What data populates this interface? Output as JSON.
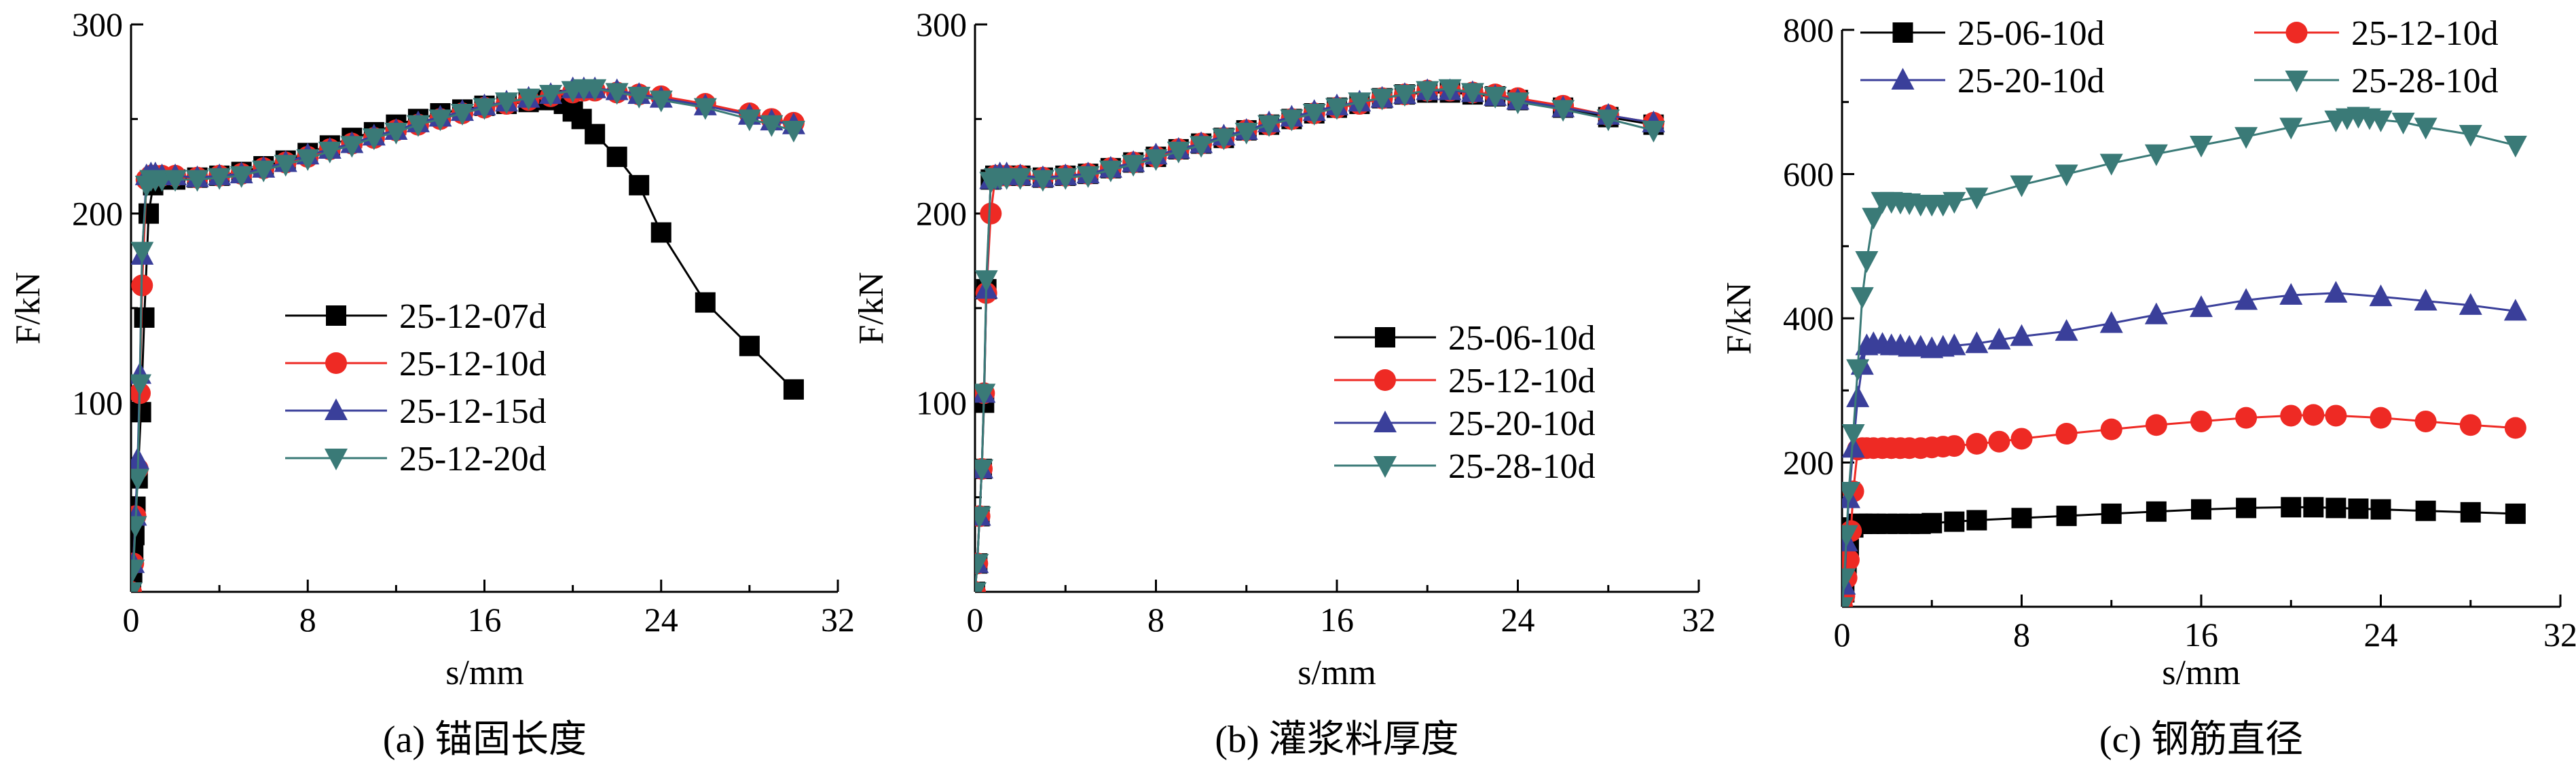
{
  "chart_data": [
    {
      "type": "line",
      "caption": "(a) 锚固长度",
      "ylabel": "F/kN",
      "xlabel": "s/mm",
      "xlim": [
        0,
        32
      ],
      "ylim": [
        0,
        300
      ],
      "xticks": [
        0,
        8,
        16,
        24,
        32
      ],
      "yticks": [
        100,
        200,
        300
      ],
      "legend_position": "center",
      "series": [
        {
          "name": "25-12-07d",
          "color": "#000000",
          "marker": "square",
          "x": [
            0,
            0.05,
            0.1,
            0.15,
            0.2,
            0.3,
            0.45,
            0.6,
            0.8,
            1.0,
            1.5,
            2,
            3,
            4,
            5,
            6,
            7,
            8,
            9,
            10,
            11,
            12,
            13,
            14,
            15,
            16,
            17,
            18,
            18.7,
            19.2,
            19.6,
            20,
            20.4,
            21,
            22,
            23,
            24,
            26,
            28,
            30
          ],
          "y": [
            0,
            10,
            20,
            30,
            45,
            60,
            95,
            145,
            200,
            215,
            218,
            218,
            219,
            220,
            222,
            225,
            228,
            232,
            236,
            240,
            243,
            247,
            250,
            253,
            255,
            257,
            258,
            259,
            260,
            260,
            258,
            254,
            250,
            242,
            230,
            215,
            190,
            153,
            130,
            107
          ]
        },
        {
          "name": "25-12-10d",
          "color": "#ee2a24",
          "marker": "circle",
          "x": [
            0,
            0.1,
            0.2,
            0.3,
            0.4,
            0.5,
            0.7,
            0.9,
            1.1,
            1.4,
            2,
            3,
            4,
            5,
            6,
            7,
            8,
            9,
            10,
            11,
            12,
            13,
            14,
            15,
            16,
            17,
            18,
            19,
            20,
            20.5,
            21,
            22,
            23,
            24,
            26,
            28,
            29,
            30
          ],
          "y": [
            0,
            15,
            40,
            65,
            105,
            162,
            218,
            220,
            220,
            220,
            220,
            219,
            220,
            221,
            224,
            227,
            230,
            234,
            237,
            240,
            244,
            247,
            250,
            253,
            256,
            258,
            260,
            262,
            264,
            265,
            265,
            264,
            263,
            262,
            258,
            253,
            250,
            248
          ]
        },
        {
          "name": "25-12-15d",
          "color": "#3a3f9a",
          "marker": "triangle-up",
          "x": [
            0,
            0.1,
            0.2,
            0.3,
            0.4,
            0.5,
            0.7,
            0.9,
            1.1,
            1.4,
            2,
            3,
            4,
            5,
            6,
            7,
            8,
            9,
            10,
            11,
            12,
            13,
            14,
            15,
            16,
            17,
            18,
            19,
            20,
            20.5,
            21,
            22,
            23,
            24,
            26,
            28,
            29,
            30
          ],
          "y": [
            0,
            15,
            40,
            70,
            115,
            178,
            220,
            221,
            221,
            220,
            220,
            219,
            220,
            221,
            224,
            227,
            231,
            234,
            237,
            241,
            244,
            248,
            251,
            254,
            257,
            259,
            261,
            263,
            266,
            266,
            266,
            265,
            263,
            261,
            257,
            252,
            249,
            247
          ]
        },
        {
          "name": "25-12-20d",
          "color": "#3a7a77",
          "marker": "triangle-down",
          "x": [
            0,
            0.1,
            0.2,
            0.3,
            0.4,
            0.5,
            0.7,
            0.9,
            1.1,
            1.4,
            2,
            3,
            4,
            5,
            6,
            7,
            8,
            9,
            10,
            11,
            12,
            13,
            14,
            15,
            16,
            17,
            18,
            19,
            20,
            20.5,
            21,
            22,
            23,
            24,
            26,
            28,
            29,
            30
          ],
          "y": [
            0,
            12,
            35,
            60,
            110,
            180,
            215,
            218,
            218,
            218,
            218,
            218,
            219,
            220,
            223,
            226,
            229,
            233,
            236,
            240,
            243,
            247,
            250,
            253,
            256,
            259,
            261,
            263,
            265,
            266,
            266,
            264,
            262,
            260,
            256,
            250,
            247,
            244
          ]
        }
      ]
    },
    {
      "type": "line",
      "caption": "(b) 灌浆料厚度",
      "ylabel": "F/kN",
      "xlabel": "s/mm",
      "xlim": [
        0,
        32
      ],
      "ylim": [
        0,
        300
      ],
      "xticks": [
        0,
        8,
        16,
        24,
        32
      ],
      "yticks": [
        100,
        200,
        300
      ],
      "legend_position": "center-right",
      "series": [
        {
          "name": "25-06-10d",
          "color": "#000000",
          "marker": "square",
          "x": [
            0,
            0.1,
            0.2,
            0.3,
            0.4,
            0.5,
            0.7,
            0.9,
            1.1,
            1.4,
            2,
            3,
            4,
            5,
            6,
            7,
            8,
            9,
            10,
            11,
            12,
            13,
            14,
            15,
            16,
            17,
            18,
            19,
            20,
            21,
            22,
            23,
            24,
            26,
            28,
            30
          ],
          "y": [
            0,
            15,
            40,
            65,
            100,
            160,
            218,
            220,
            220,
            220,
            220,
            219,
            220,
            221,
            224,
            227,
            230,
            234,
            237,
            240,
            244,
            247,
            250,
            253,
            256,
            258,
            261,
            263,
            264,
            264,
            263,
            262,
            260,
            256,
            251,
            247
          ]
        },
        {
          "name": "25-12-10d",
          "color": "#ee2a24",
          "marker": "circle",
          "x": [
            0,
            0.1,
            0.2,
            0.3,
            0.4,
            0.5,
            0.7,
            0.9,
            1.1,
            1.4,
            2,
            3,
            4,
            5,
            6,
            7,
            8,
            9,
            10,
            11,
            12,
            13,
            14,
            15,
            16,
            17,
            18,
            19,
            20,
            21,
            22,
            23,
            24,
            26,
            28,
            30
          ],
          "y": [
            0,
            15,
            40,
            65,
            105,
            158,
            200,
            220,
            220,
            220,
            220,
            219,
            220,
            221,
            224,
            227,
            230,
            234,
            237,
            240,
            244,
            247,
            250,
            253,
            256,
            258,
            261,
            263,
            265,
            265,
            264,
            263,
            261,
            257,
            252,
            248
          ]
        },
        {
          "name": "25-20-10d",
          "color": "#3a3f9a",
          "marker": "triangle-up",
          "x": [
            0,
            0.1,
            0.2,
            0.3,
            0.4,
            0.5,
            0.7,
            0.9,
            1.1,
            1.4,
            2,
            3,
            4,
            5,
            6,
            7,
            8,
            9,
            10,
            11,
            12,
            13,
            14,
            15,
            16,
            17,
            18,
            19,
            20,
            21,
            22,
            23,
            24,
            26,
            28,
            30
          ],
          "y": [
            0,
            15,
            40,
            65,
            105,
            160,
            218,
            220,
            221,
            221,
            220,
            219,
            220,
            221,
            224,
            227,
            231,
            234,
            237,
            241,
            244,
            248,
            251,
            254,
            257,
            259,
            261,
            263,
            265,
            265,
            264,
            262,
            260,
            256,
            252,
            248
          ]
        },
        {
          "name": "25-28-10d",
          "color": "#3a7a77",
          "marker": "triangle-down",
          "x": [
            0,
            0.1,
            0.2,
            0.3,
            0.4,
            0.5,
            0.7,
            0.9,
            1.1,
            1.4,
            2,
            3,
            4,
            5,
            6,
            7,
            8,
            9,
            10,
            11,
            12,
            13,
            14,
            15,
            16,
            17,
            18,
            19,
            20,
            21,
            22,
            23,
            24,
            26,
            28,
            30
          ],
          "y": [
            0,
            15,
            40,
            65,
            105,
            165,
            217,
            219,
            219,
            219,
            219,
            218,
            219,
            220,
            223,
            226,
            229,
            233,
            236,
            240,
            243,
            247,
            250,
            253,
            256,
            259,
            261,
            263,
            265,
            266,
            264,
            262,
            259,
            255,
            250,
            244
          ]
        }
      ]
    },
    {
      "type": "line",
      "caption": "(c) 钢筋直径",
      "ylabel": "F/kN",
      "xlabel": "s/mm",
      "xlim": [
        0,
        32
      ],
      "ylim": [
        0,
        800
      ],
      "xticks": [
        0,
        8,
        16,
        24,
        32
      ],
      "yticks": [
        200,
        400,
        600,
        800
      ],
      "legend_position": "top",
      "series": [
        {
          "name": "25-06-10d",
          "color": "#000000",
          "marker": "square",
          "x": [
            0,
            0.1,
            0.2,
            0.3,
            0.5,
            0.7,
            0.9,
            1.2,
            1.5,
            2,
            2.5,
            3,
            3.5,
            4,
            5,
            6,
            8,
            10,
            12,
            14,
            16,
            18,
            20,
            21,
            22,
            23,
            24,
            26,
            28,
            30
          ],
          "y": [
            0,
            20,
            50,
            80,
            110,
            115,
            115,
            115,
            115,
            115,
            115,
            115,
            115,
            116,
            118,
            120,
            123,
            126,
            129,
            132,
            135,
            137,
            138,
            138,
            137,
            136,
            135,
            133,
            131,
            129
          ]
        },
        {
          "name": "25-12-10d",
          "color": "#ee2a24",
          "marker": "circle",
          "x": [
            0,
            0.1,
            0.2,
            0.3,
            0.4,
            0.5,
            0.7,
            0.9,
            1.1,
            1.4,
            1.8,
            2.2,
            2.6,
            3,
            3.5,
            4,
            4.5,
            5,
            6,
            7,
            8,
            10,
            12,
            14,
            16,
            18,
            20,
            21,
            22,
            24,
            26,
            28,
            30
          ],
          "y": [
            0,
            15,
            40,
            65,
            105,
            160,
            218,
            220,
            220,
            220,
            220,
            220,
            220,
            220,
            220,
            221,
            222,
            223,
            226,
            229,
            233,
            240,
            246,
            252,
            257,
            262,
            265,
            266,
            265,
            262,
            257,
            252,
            248
          ]
        },
        {
          "name": "25-20-10d",
          "color": "#3a3f9a",
          "marker": "triangle-up",
          "x": [
            0,
            0.1,
            0.2,
            0.3,
            0.5,
            0.7,
            0.9,
            1.1,
            1.4,
            1.8,
            2.2,
            2.6,
            3,
            3.5,
            4,
            4.5,
            5,
            6,
            7,
            8,
            10,
            12,
            14,
            16,
            18,
            20,
            22,
            24,
            26,
            28,
            30
          ],
          "y": [
            0,
            30,
            90,
            150,
            220,
            290,
            335,
            362,
            365,
            364,
            362,
            362,
            360,
            360,
            358,
            360,
            362,
            365,
            370,
            375,
            382,
            393,
            405,
            415,
            425,
            432,
            435,
            430,
            424,
            418,
            410
          ]
        },
        {
          "name": "25-28-10d",
          "color": "#3a7a77",
          "marker": "triangle-down",
          "x": [
            0,
            0.1,
            0.2,
            0.3,
            0.5,
            0.7,
            0.9,
            1.1,
            1.4,
            1.8,
            2.2,
            2.6,
            3,
            3.5,
            4,
            4.5,
            5,
            6,
            8,
            10,
            12,
            14,
            16,
            18,
            20,
            22,
            22.5,
            23,
            23.5,
            24,
            25,
            26,
            28,
            30
          ],
          "y": [
            0,
            40,
            100,
            160,
            240,
            330,
            430,
            480,
            540,
            562,
            562,
            561,
            560,
            558,
            558,
            558,
            562,
            568,
            585,
            600,
            615,
            628,
            640,
            652,
            665,
            675,
            678,
            680,
            678,
            675,
            672,
            665,
            655,
            640
          ]
        }
      ]
    }
  ]
}
